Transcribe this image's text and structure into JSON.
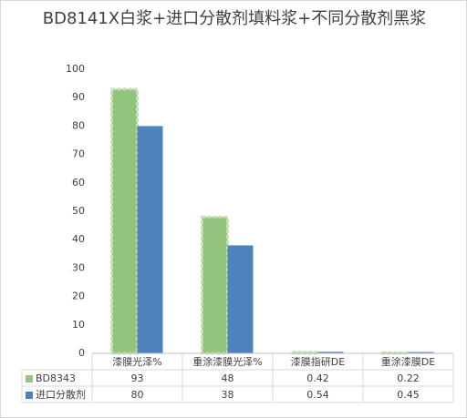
{
  "chart_data": {
    "type": "bar",
    "title": "BD8141X白浆+进口分散剂填料浆+不同分散剂黑浆",
    "categories": [
      "漆膜光泽%",
      "重涂漆膜光泽%",
      "漆膜指研DE",
      "重涂漆膜DE"
    ],
    "series": [
      {
        "name": "BD8343",
        "color": "#93c47d",
        "values": [
          93,
          48,
          0.42,
          0.22
        ]
      },
      {
        "name": "进口分散剂",
        "color": "#4f81bd",
        "values": [
          80,
          38,
          0.54,
          0.45
        ]
      }
    ],
    "ylim": [
      0,
      100
    ],
    "yticks": [
      0,
      10,
      20,
      30,
      40,
      50,
      60,
      70,
      80,
      90,
      100
    ],
    "grid": false
  }
}
